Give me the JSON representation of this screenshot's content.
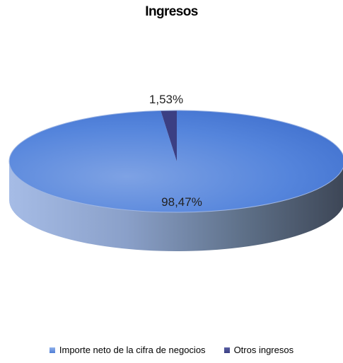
{
  "chart_data": {
    "type": "pie",
    "title": "Ingresos",
    "categories": [
      "Importe neto de la cifra de negocios",
      "Otros ingresos"
    ],
    "values": [
      98.47,
      1.53
    ],
    "data_labels": [
      "98,47%",
      "1,53%"
    ],
    "colors": [
      "#4f7fd6",
      "#3b3f83"
    ],
    "legend_position": "bottom",
    "style": "3d"
  }
}
